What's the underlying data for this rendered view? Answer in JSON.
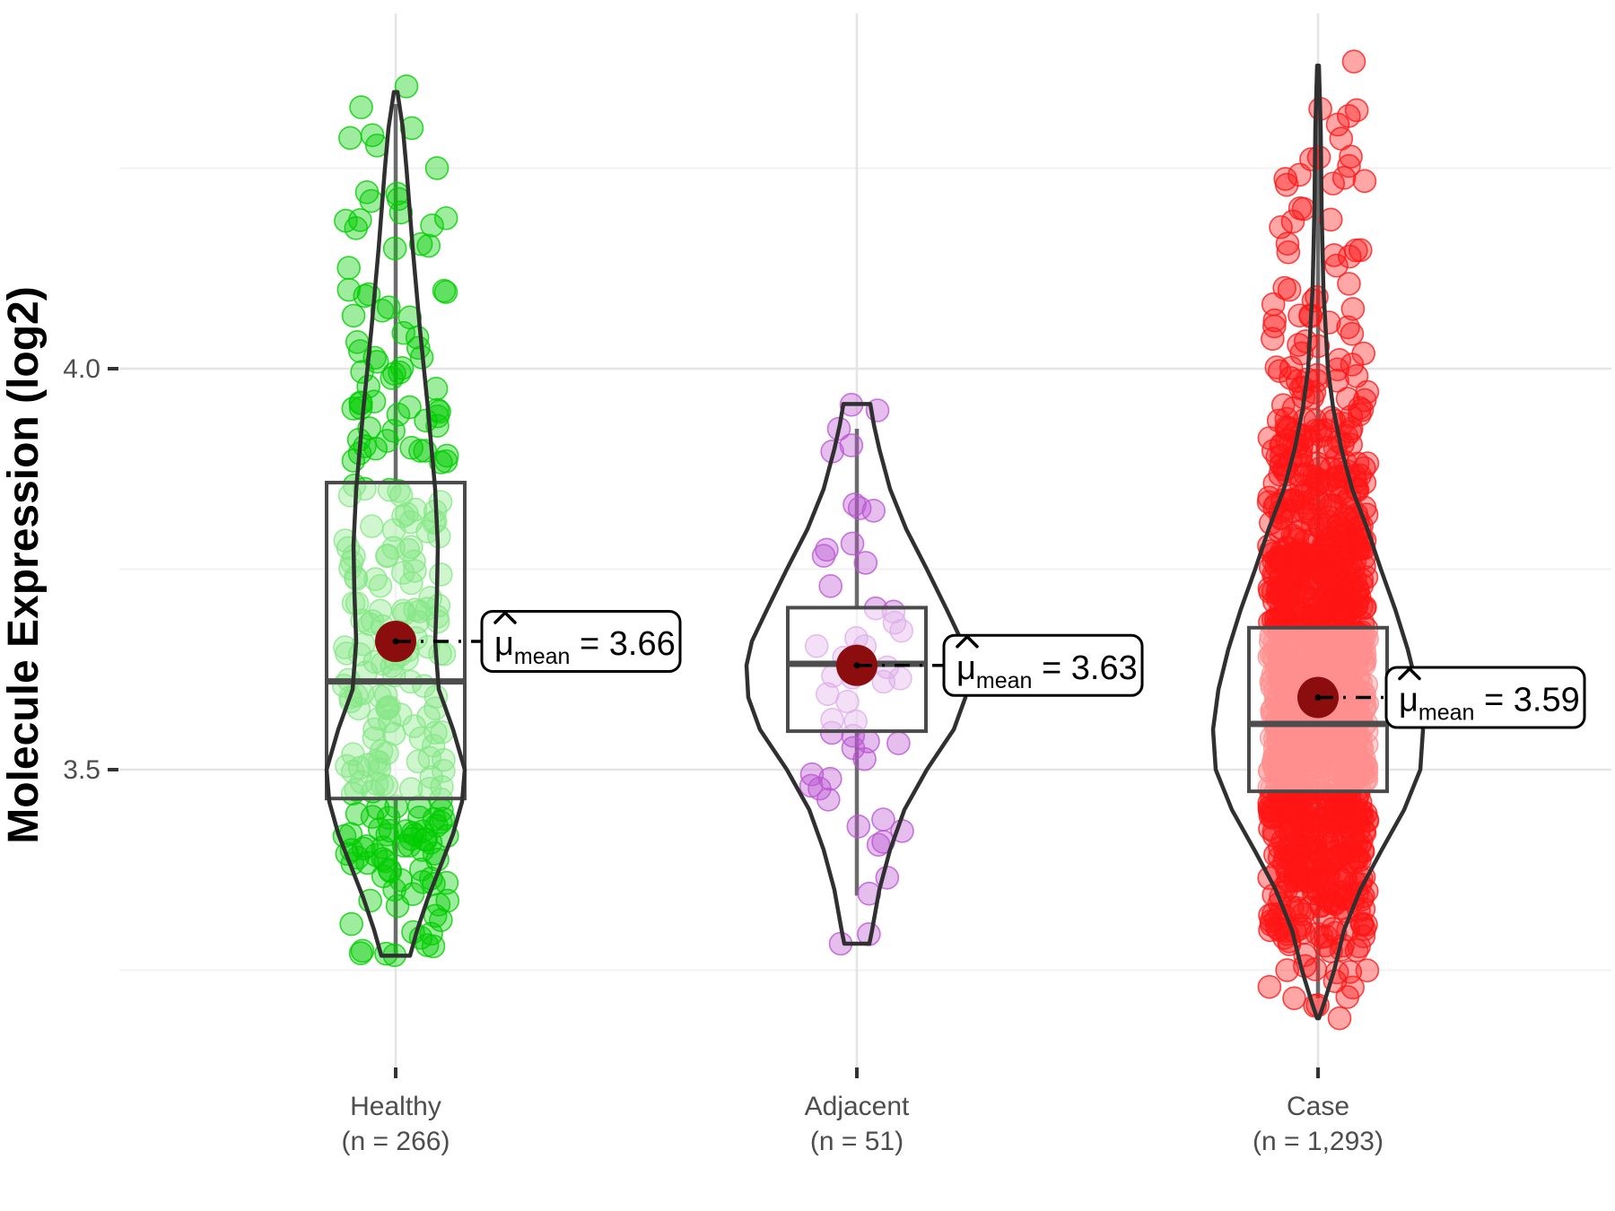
{
  "chart_data": {
    "type": "violin",
    "title": "",
    "xlabel": "",
    "ylabel": "Molecule Expression (log2)",
    "y_axis": {
      "ticks": [
        {
          "value": 4.0,
          "label": "4.0"
        },
        {
          "value": 3.5,
          "label": "3.5"
        }
      ],
      "minor_gridlines": [
        4.25,
        3.75,
        3.25
      ],
      "range": [
        3.13,
        4.45
      ],
      "grid": true
    },
    "colors": {
      "background": "#ffffff",
      "grid_major": "#e5e5e5",
      "grid_minor": "#f1f1f1",
      "axis_text": "#4d4d4d",
      "axis_title": "#000000",
      "tick_mark": "#333333",
      "violin_outline": "#303030",
      "box_outline": "#4a4a4a",
      "box_fill": "rgba(255,255,255,0.52)",
      "whisker": "#6b6b6b",
      "median": "#4d4d4d",
      "mean_dot": "#8B0D0D",
      "annotation_bg": "#ffffff",
      "annotation_border": "#000000",
      "annotation_text": "#000000"
    },
    "groups": [
      {
        "id": "healthy",
        "label": "Healthy",
        "sublabel": "(n = 266)",
        "n": 266,
        "point_color": "#00CD00",
        "mean": 3.66,
        "mean_label": {
          "symbol": "μ",
          "hat": "^",
          "sub": "mean",
          "eq": " = ",
          "value": "3.66"
        },
        "median": 3.61,
        "q1": 3.464,
        "q3": 3.858,
        "whisker_low": 3.268,
        "whisker_high": 4.33,
        "violin": [
          [
            4.345,
            2
          ],
          [
            4.3,
            8
          ],
          [
            4.25,
            12
          ],
          [
            4.15,
            19
          ],
          [
            4.05,
            27
          ],
          [
            3.95,
            36
          ],
          [
            3.85,
            44
          ],
          [
            3.78,
            47
          ],
          [
            3.72,
            46
          ],
          [
            3.66,
            44
          ],
          [
            3.6,
            48
          ],
          [
            3.55,
            64
          ],
          [
            3.5,
            77
          ],
          [
            3.46,
            74
          ],
          [
            3.42,
            64
          ],
          [
            3.38,
            50
          ],
          [
            3.34,
            36
          ],
          [
            3.3,
            24
          ],
          [
            3.268,
            16
          ]
        ],
        "jitter_halfwidth": 58,
        "seed": 11,
        "extra_points": [
          [
            4.352,
            12
          ],
          [
            4.3,
            18
          ],
          [
            4.22,
            -32
          ]
        ],
        "label_offset_x": 96
      },
      {
        "id": "adjacent",
        "label": "Adjacent",
        "sublabel": "(n = 51)",
        "n": 51,
        "point_color": "#BA55D3",
        "mean": 3.63,
        "mean_label": {
          "symbol": "μ",
          "hat": "^",
          "sub": "mean",
          "eq": " = ",
          "value": "3.63"
        },
        "median": 3.632,
        "q1": 3.548,
        "q3": 3.702,
        "whisker_low": 3.343,
        "whisker_high": 3.925,
        "violin": [
          [
            3.956,
            15
          ],
          [
            3.93,
            19
          ],
          [
            3.9,
            25
          ],
          [
            3.85,
            37
          ],
          [
            3.8,
            55
          ],
          [
            3.75,
            78
          ],
          [
            3.7,
            100
          ],
          [
            3.66,
            117
          ],
          [
            3.63,
            123
          ],
          [
            3.59,
            121
          ],
          [
            3.55,
            108
          ],
          [
            3.5,
            78
          ],
          [
            3.45,
            53
          ],
          [
            3.4,
            37
          ],
          [
            3.35,
            25
          ],
          [
            3.3,
            17
          ],
          [
            3.283,
            14
          ]
        ],
        "jitter_halfwidth": 52,
        "seed": 23,
        "extra_points": [
          [
            3.955,
            -6
          ],
          [
            3.925,
            -20
          ],
          [
            3.283,
            -18
          ]
        ],
        "label_offset_x": 97
      },
      {
        "id": "case",
        "label": "Case",
        "sublabel": "(n = 1,293)",
        "n": 1293,
        "point_color": "#FF1414",
        "mean": 3.59,
        "mean_label": {
          "symbol": "μ",
          "hat": "^",
          "sub": "mean",
          "eq": " = ",
          "value": "3.59"
        },
        "median": 3.557,
        "q1": 3.473,
        "q3": 3.677,
        "whisker_low": 3.215,
        "whisker_high": 4.37,
        "violin": [
          [
            4.378,
            1
          ],
          [
            4.3,
            3
          ],
          [
            4.2,
            4
          ],
          [
            4.1,
            6
          ],
          [
            4.0,
            11
          ],
          [
            3.95,
            17
          ],
          [
            3.9,
            26
          ],
          [
            3.85,
            38
          ],
          [
            3.8,
            55
          ],
          [
            3.75,
            70
          ],
          [
            3.7,
            86
          ],
          [
            3.65,
            100
          ],
          [
            3.6,
            111
          ],
          [
            3.55,
            117
          ],
          [
            3.5,
            114
          ],
          [
            3.45,
            96
          ],
          [
            3.4,
            71
          ],
          [
            3.35,
            47
          ],
          [
            3.3,
            29
          ],
          [
            3.25,
            18
          ],
          [
            3.21,
            7
          ],
          [
            3.19,
            1
          ]
        ],
        "jitter_halfwidth": 55,
        "seed": 37,
        "extra_points": [
          [
            4.383,
            40
          ],
          [
            3.19,
            24
          ]
        ],
        "label_offset_x": 76
      }
    ]
  }
}
